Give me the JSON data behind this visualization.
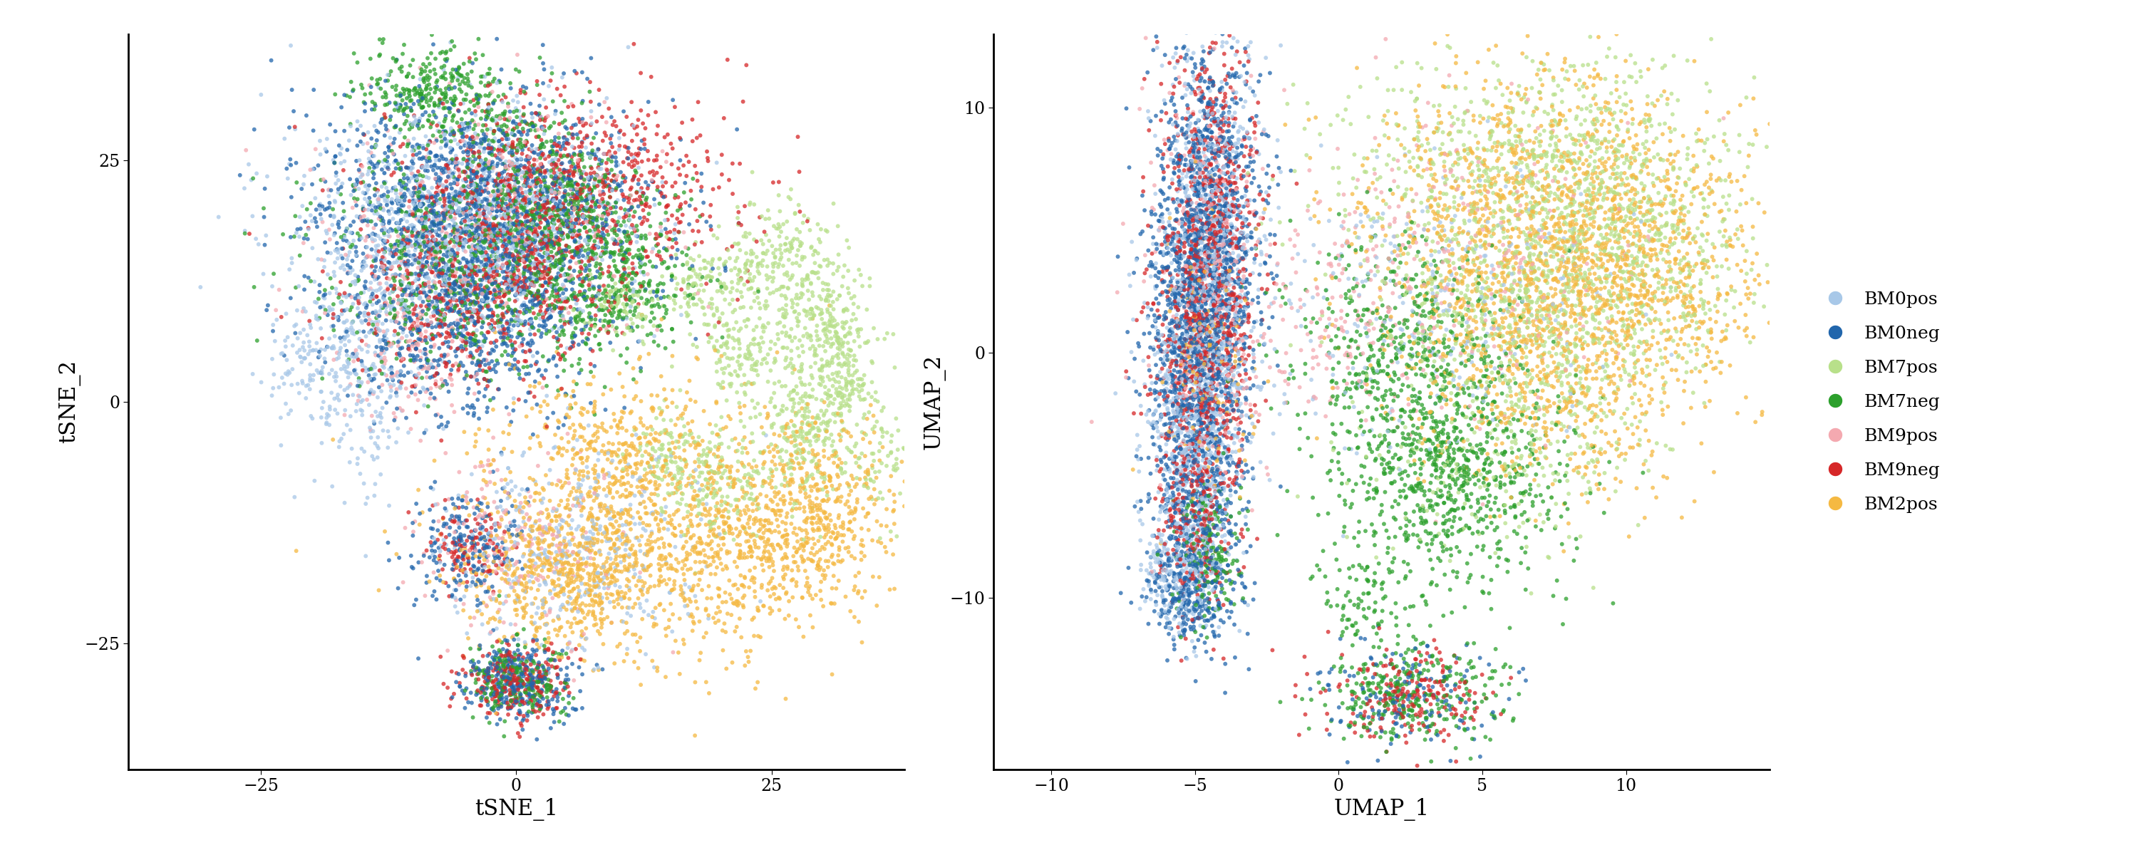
{
  "groups": [
    "BM0pos",
    "BM0neg",
    "BM7pos",
    "BM7neg",
    "BM9pos",
    "BM9neg",
    "BM2pos"
  ],
  "colors": {
    "BM0pos": "#A8C8E8",
    "BM0neg": "#2166AC",
    "BM7pos": "#B8E08A",
    "BM7neg": "#2CA02C",
    "BM9pos": "#F4A9B0",
    "BM9neg": "#D62728",
    "BM2pos": "#F5B942"
  },
  "tsne_xlabel": "tSNE_1",
  "tsne_ylabel": "tSNE_2",
  "umap_xlabel": "UMAP_1",
  "umap_ylabel": "UMAP_2",
  "tsne_xlim": [
    -38,
    38
  ],
  "tsne_ylim": [
    -38,
    38
  ],
  "umap_xlim": [
    -12,
    15
  ],
  "umap_ylim": [
    -17,
    13
  ],
  "point_size": 18,
  "alpha": 0.75,
  "font_size": 18,
  "label_font_size": 22,
  "tick_font_size": 17
}
